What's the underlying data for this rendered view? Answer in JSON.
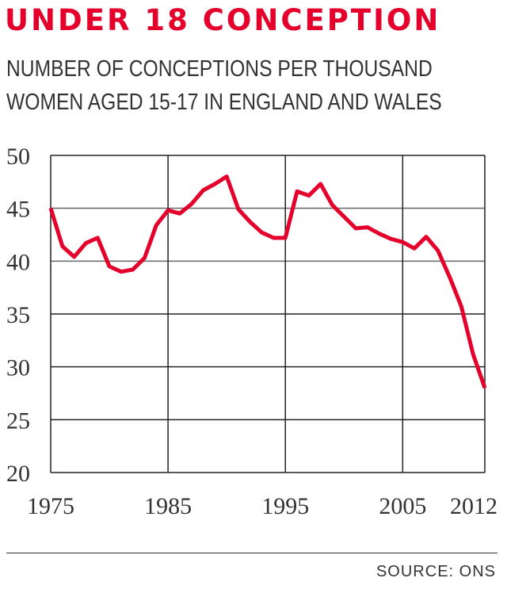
{
  "chart_data": {
    "type": "line",
    "title": "UNDER 18 CONCEPTION",
    "subtitle": [
      "NUMBER OF CONCEPTIONS PER THOUSAND",
      "WOMEN AGED 15-17 IN ENGLAND AND WALES"
    ],
    "xlabel": "",
    "ylabel": "",
    "xlim": [
      1975,
      2012
    ],
    "ylim": [
      20,
      50
    ],
    "x_ticks": [
      1975,
      1985,
      1995,
      2005,
      2012
    ],
    "y_ticks": [
      50,
      45,
      40,
      35,
      30,
      25,
      20
    ],
    "grid": true,
    "line_color": "#e4002b",
    "x": [
      1975,
      1976,
      1977,
      1978,
      1979,
      1980,
      1981,
      1982,
      1983,
      1984,
      1985,
      1986,
      1987,
      1988,
      1989,
      1990,
      1991,
      1992,
      1993,
      1994,
      1995,
      1996,
      1997,
      1998,
      1999,
      2000,
      2001,
      2002,
      2003,
      2004,
      2005,
      2006,
      2007,
      2008,
      2009,
      2010,
      2011,
      2012
    ],
    "values": [
      45.0,
      41.4,
      40.4,
      41.7,
      42.2,
      39.5,
      39.0,
      39.2,
      40.3,
      43.4,
      44.8,
      44.5,
      45.4,
      46.7,
      47.3,
      48.0,
      44.9,
      43.7,
      42.7,
      42.2,
      42.2,
      46.6,
      46.2,
      47.3,
      45.3,
      44.2,
      43.1,
      43.2,
      42.6,
      42.1,
      41.8,
      41.2,
      42.3,
      41.0,
      38.5,
      35.7,
      31.2,
      28.0
    ],
    "source": "SOURCE: ONS"
  }
}
